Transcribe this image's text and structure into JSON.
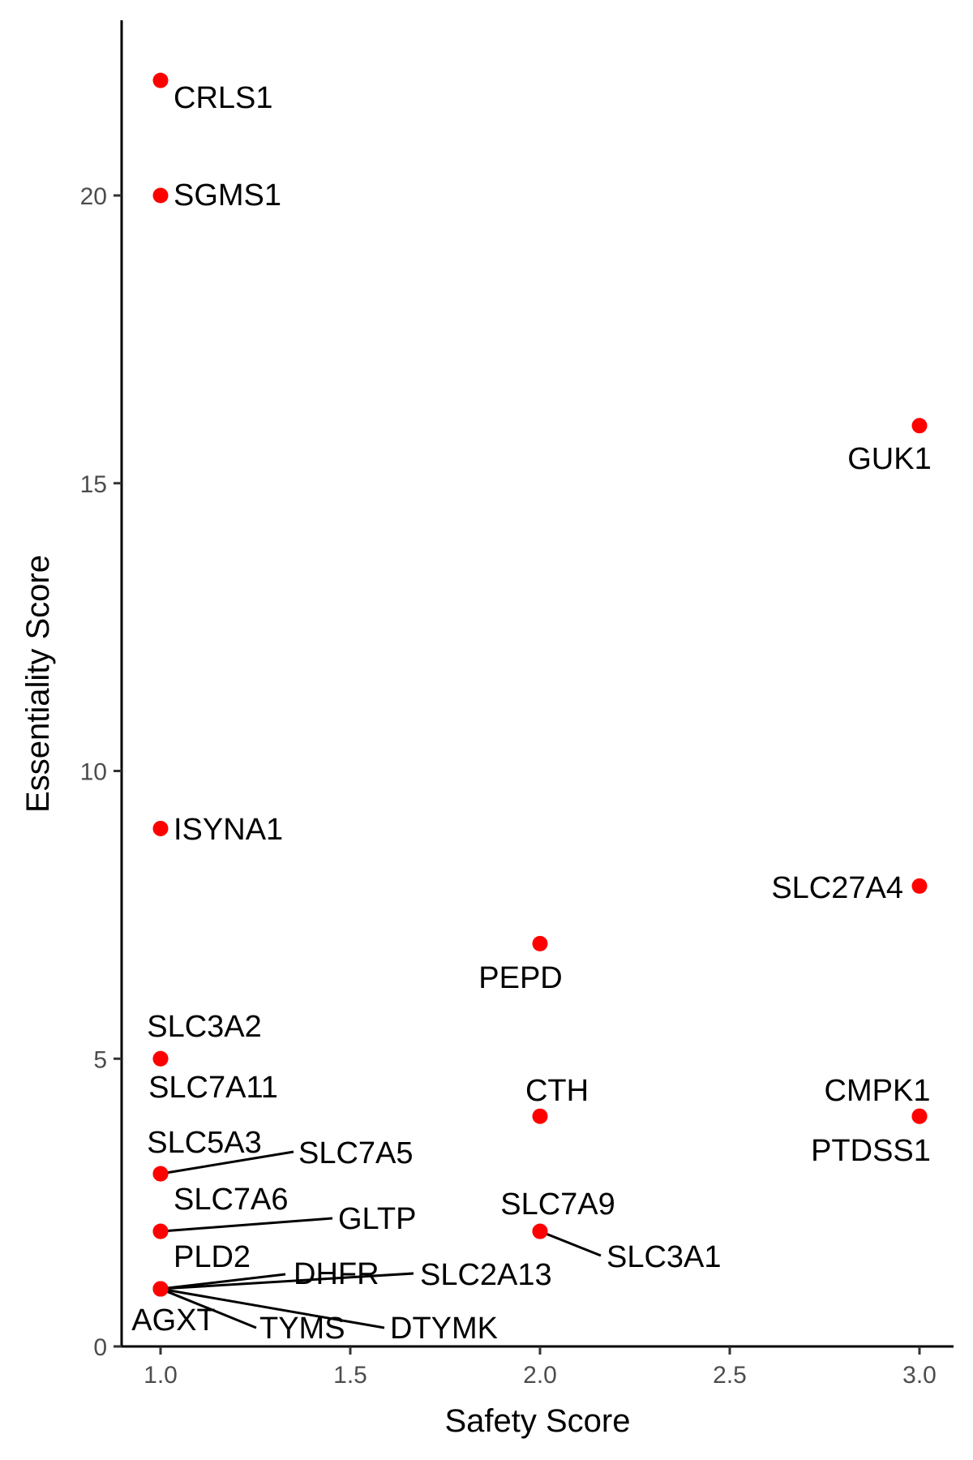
{
  "chart_data": {
    "type": "scatter",
    "xlabel": "Safety Score",
    "ylabel": "Essentiality Score",
    "xlim": [
      0.9,
      3.1
    ],
    "ylim": [
      0,
      22.5
    ],
    "xticks": [
      {
        "value": 1.0,
        "label": "1.0"
      },
      {
        "value": 1.5,
        "label": "1.5"
      },
      {
        "value": 2.0,
        "label": "2.0"
      },
      {
        "value": 2.5,
        "label": "2.5"
      },
      {
        "value": 3.0,
        "label": "3.0"
      }
    ],
    "yticks": [
      {
        "value": 0,
        "label": "0"
      },
      {
        "value": 5,
        "label": "5"
      },
      {
        "value": 10,
        "label": "10"
      },
      {
        "value": 15,
        "label": "15"
      },
      {
        "value": 20,
        "label": "20"
      }
    ],
    "grid": false,
    "point_color": "#ff0000",
    "points": [
      {
        "x": 1,
        "y": 22,
        "label": "CRLS1"
      },
      {
        "x": 1,
        "y": 20,
        "label": "SGMS1"
      },
      {
        "x": 1,
        "y": 9,
        "label": "ISYNA1"
      },
      {
        "x": 1,
        "y": 5,
        "label": "SLC3A2"
      },
      {
        "x": 1,
        "y": 5,
        "label": "SLC7A11"
      },
      {
        "x": 1,
        "y": 3,
        "label": "SLC5A3"
      },
      {
        "x": 1,
        "y": 3,
        "label": "SLC7A5"
      },
      {
        "x": 1,
        "y": 2,
        "label": "SLC7A6"
      },
      {
        "x": 1,
        "y": 2,
        "label": "GLTP"
      },
      {
        "x": 1,
        "y": 1,
        "label": "PLD2"
      },
      {
        "x": 1,
        "y": 1,
        "label": "DHFR"
      },
      {
        "x": 1,
        "y": 1,
        "label": "SLC2A13"
      },
      {
        "x": 1,
        "y": 1,
        "label": "AGXT"
      },
      {
        "x": 1,
        "y": 1,
        "label": "TYMS"
      },
      {
        "x": 1,
        "y": 1,
        "label": "DTYMK"
      },
      {
        "x": 2,
        "y": 7,
        "label": "PEPD"
      },
      {
        "x": 2,
        "y": 4,
        "label": "CTH"
      },
      {
        "x": 2,
        "y": 2,
        "label": "SLC7A9"
      },
      {
        "x": 2,
        "y": 2,
        "label": "SLC3A1"
      },
      {
        "x": 3,
        "y": 16,
        "label": "GUK1"
      },
      {
        "x": 3,
        "y": 8,
        "label": "SLC27A4"
      },
      {
        "x": 3,
        "y": 4,
        "label": "CMPK1"
      },
      {
        "x": 3,
        "y": 4,
        "label": "PTDSS1"
      }
    ]
  }
}
